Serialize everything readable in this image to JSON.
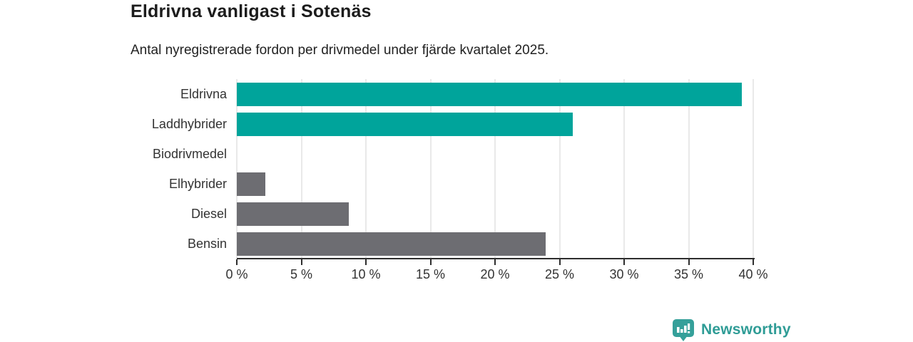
{
  "title": "Eldrivna vanligast i Sotenäs",
  "subtitle": "Antal nyregistrerade fordon per drivmedel under fjärde kvartalet 2025.",
  "chart_data": {
    "type": "bar",
    "orientation": "horizontal",
    "title": "Eldrivna vanligast i Sotenäs",
    "subtitle": "Antal nyregistrerade fordon per drivmedel under fjärde kvartalet 2025.",
    "categories": [
      "Eldrivna",
      "Laddhybrider",
      "Biodrivmedel",
      "Elhybrider",
      "Diesel",
      "Bensin"
    ],
    "values": [
      39.1,
      26.0,
      0,
      2.2,
      8.7,
      23.9
    ],
    "unit": "%",
    "xlim": [
      0,
      40
    ],
    "xtick_step": 5,
    "xtick_labels": [
      "0 %",
      "5 %",
      "10 %",
      "15 %",
      "20 %",
      "25 %",
      "30 %",
      "35 %",
      "40 %"
    ],
    "grid": true,
    "legend": "none",
    "bar_colors": [
      "#00a49b",
      "#00a49b",
      "#6d6d72",
      "#6d6d72",
      "#6d6d72",
      "#6d6d72"
    ],
    "highlight_color": "#00a49b",
    "base_color": "#6d6d72",
    "gridline_color": "#e9e9e9",
    "axis_color": "#2e2e2e"
  },
  "footer": {
    "brand": "Newsworthy",
    "brand_color": "#2f9c96",
    "logo_icon": "bar-chart-pin-icon"
  }
}
